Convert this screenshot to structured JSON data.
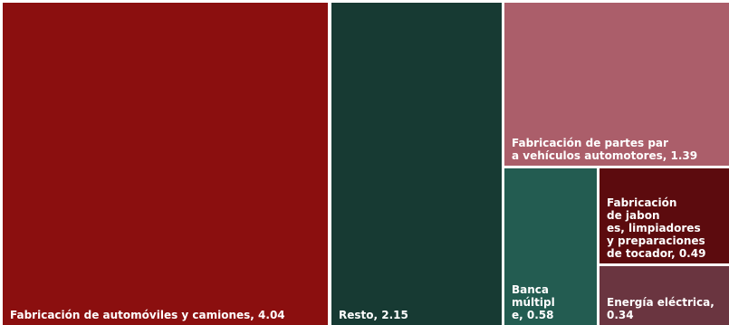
{
  "chart_data": {
    "type": "treemap",
    "title": "",
    "items": [
      {
        "label": "Fabricación de automóviles y camiones, 4.04",
        "name": "Fabricación de automóviles y camiones",
        "value": 4.04,
        "color": "#8b0f0f"
      },
      {
        "label": "Resto, 2.15",
        "name": "Resto",
        "value": 2.15,
        "color": "#173a33"
      },
      {
        "label": "Fabricación de partes para vehículos automotores, 1.39",
        "name": "Fabricación de partes para vehículos automotores",
        "value": 1.39,
        "color": "#ab5e6a"
      },
      {
        "label": "Banca múltiple, 0.58",
        "name": "Banca múltiple",
        "value": 0.58,
        "color": "#235c51"
      },
      {
        "label": "Fabricación de jabones, limpiadores y preparaciones de tocador, 0.49",
        "name": "Fabricación de jabones, limpiadores y preparaciones de tocador",
        "value": 0.49,
        "color": "#5c0b0e"
      },
      {
        "label": "Energía eléctrica, 0.34",
        "name": "Energía eléctrica",
        "value": 0.34,
        "color": "#6a3540"
      }
    ]
  }
}
